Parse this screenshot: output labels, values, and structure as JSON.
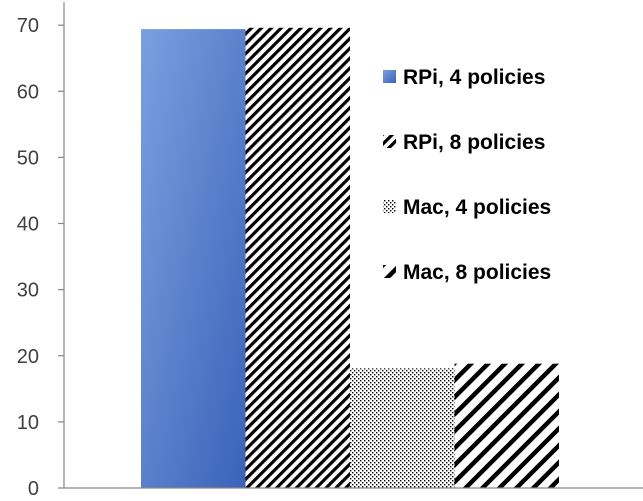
{
  "chart_data": {
    "type": "bar",
    "categories": [
      ""
    ],
    "series": [
      {
        "name": "RPi, 4 policies",
        "values": [
          69.4
        ],
        "pattern": "solid-gradient"
      },
      {
        "name": "RPi, 8 policies",
        "values": [
          69.6
        ],
        "pattern": "diagonal-dense"
      },
      {
        "name": "Mac, 4 policies",
        "values": [
          18.1
        ],
        "pattern": "dots"
      },
      {
        "name": "Mac, 8 policies",
        "values": [
          18.8
        ],
        "pattern": "diagonal-wide"
      }
    ],
    "yticks": [
      "0",
      "10",
      "20",
      "30",
      "40",
      "50",
      "60",
      "70"
    ],
    "ylim": [
      0,
      73.5
    ],
    "grid": false,
    "legend": "right",
    "colors": {
      "bar_dark": "#3a62b8",
      "bar_light": "#7ba0e0",
      "axis": "#868686",
      "text": "#404040"
    }
  }
}
